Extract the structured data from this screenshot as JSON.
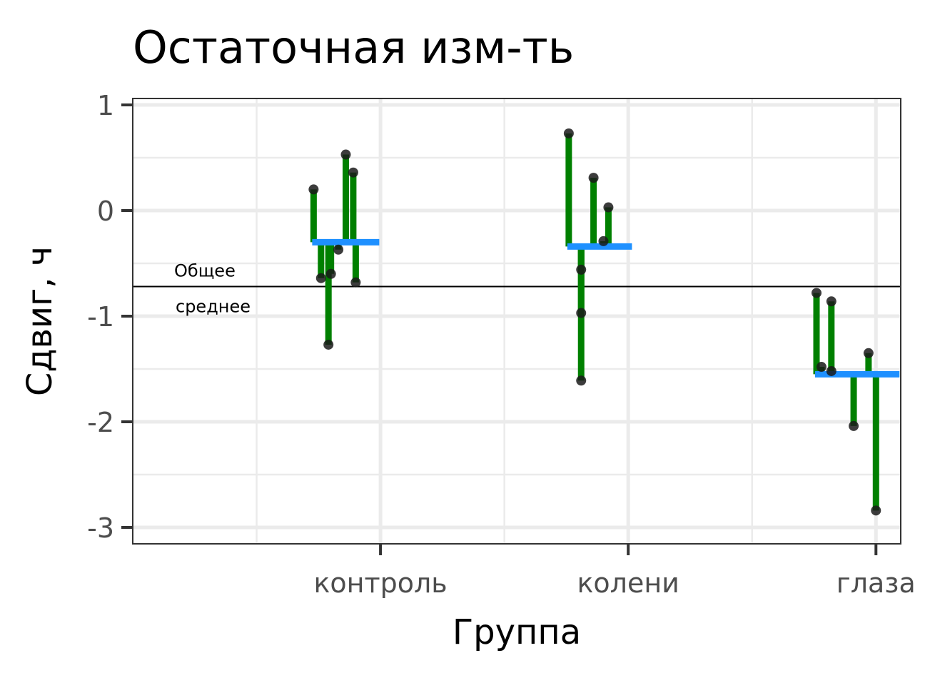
{
  "chart_data": {
    "type": "scatter",
    "title": "Остаточная изм-ть",
    "xlabel": "Группа",
    "ylabel": "Сдвиг, ч",
    "ylim": [
      -3.15,
      1.05
    ],
    "yticks": [
      "-3",
      "-2",
      "-1",
      "0",
      "1"
    ],
    "ytick_values": [
      -3,
      -2,
      -1,
      0,
      1
    ],
    "categories": [
      "контроль",
      "колени",
      "глаза"
    ],
    "grand_mean": -0.72,
    "grand_mean_label": [
      "Общее",
      "среднее"
    ],
    "grid": true,
    "colors": {
      "residual": "#008000",
      "group_mean": "#1e90ff",
      "point": "#1a1a1a",
      "grand_mean": "#000000"
    },
    "groups": [
      {
        "name": "контроль",
        "mean": -0.3,
        "points": [
          {
            "x": 0.73,
            "y": 0.2
          },
          {
            "x": 0.76,
            "y": -0.64
          },
          {
            "x": 0.79,
            "y": -1.27
          },
          {
            "x": 0.8,
            "y": -0.6
          },
          {
            "x": 0.83,
            "y": -0.37
          },
          {
            "x": 0.86,
            "y": 0.53
          },
          {
            "x": 0.89,
            "y": 0.36
          },
          {
            "x": 0.9,
            "y": -0.68
          }
        ]
      },
      {
        "name": "колени",
        "mean": -0.34,
        "points": [
          {
            "x": 1.76,
            "y": 0.73
          },
          {
            "x": 1.81,
            "y": -0.56
          },
          {
            "x": 1.81,
            "y": -0.97
          },
          {
            "x": 1.81,
            "y": -1.61
          },
          {
            "x": 1.86,
            "y": 0.31
          },
          {
            "x": 1.9,
            "y": -0.29
          },
          {
            "x": 1.92,
            "y": 0.03
          }
        ]
      },
      {
        "name": "глаза",
        "mean": -1.55,
        "points": [
          {
            "x": 2.76,
            "y": -0.78
          },
          {
            "x": 2.78,
            "y": -1.48
          },
          {
            "x": 2.82,
            "y": -0.86
          },
          {
            "x": 2.82,
            "y": -1.52
          },
          {
            "x": 2.91,
            "y": -2.04
          },
          {
            "x": 2.97,
            "y": -1.35
          },
          {
            "x": 3.0,
            "y": -2.84
          }
        ]
      }
    ]
  }
}
